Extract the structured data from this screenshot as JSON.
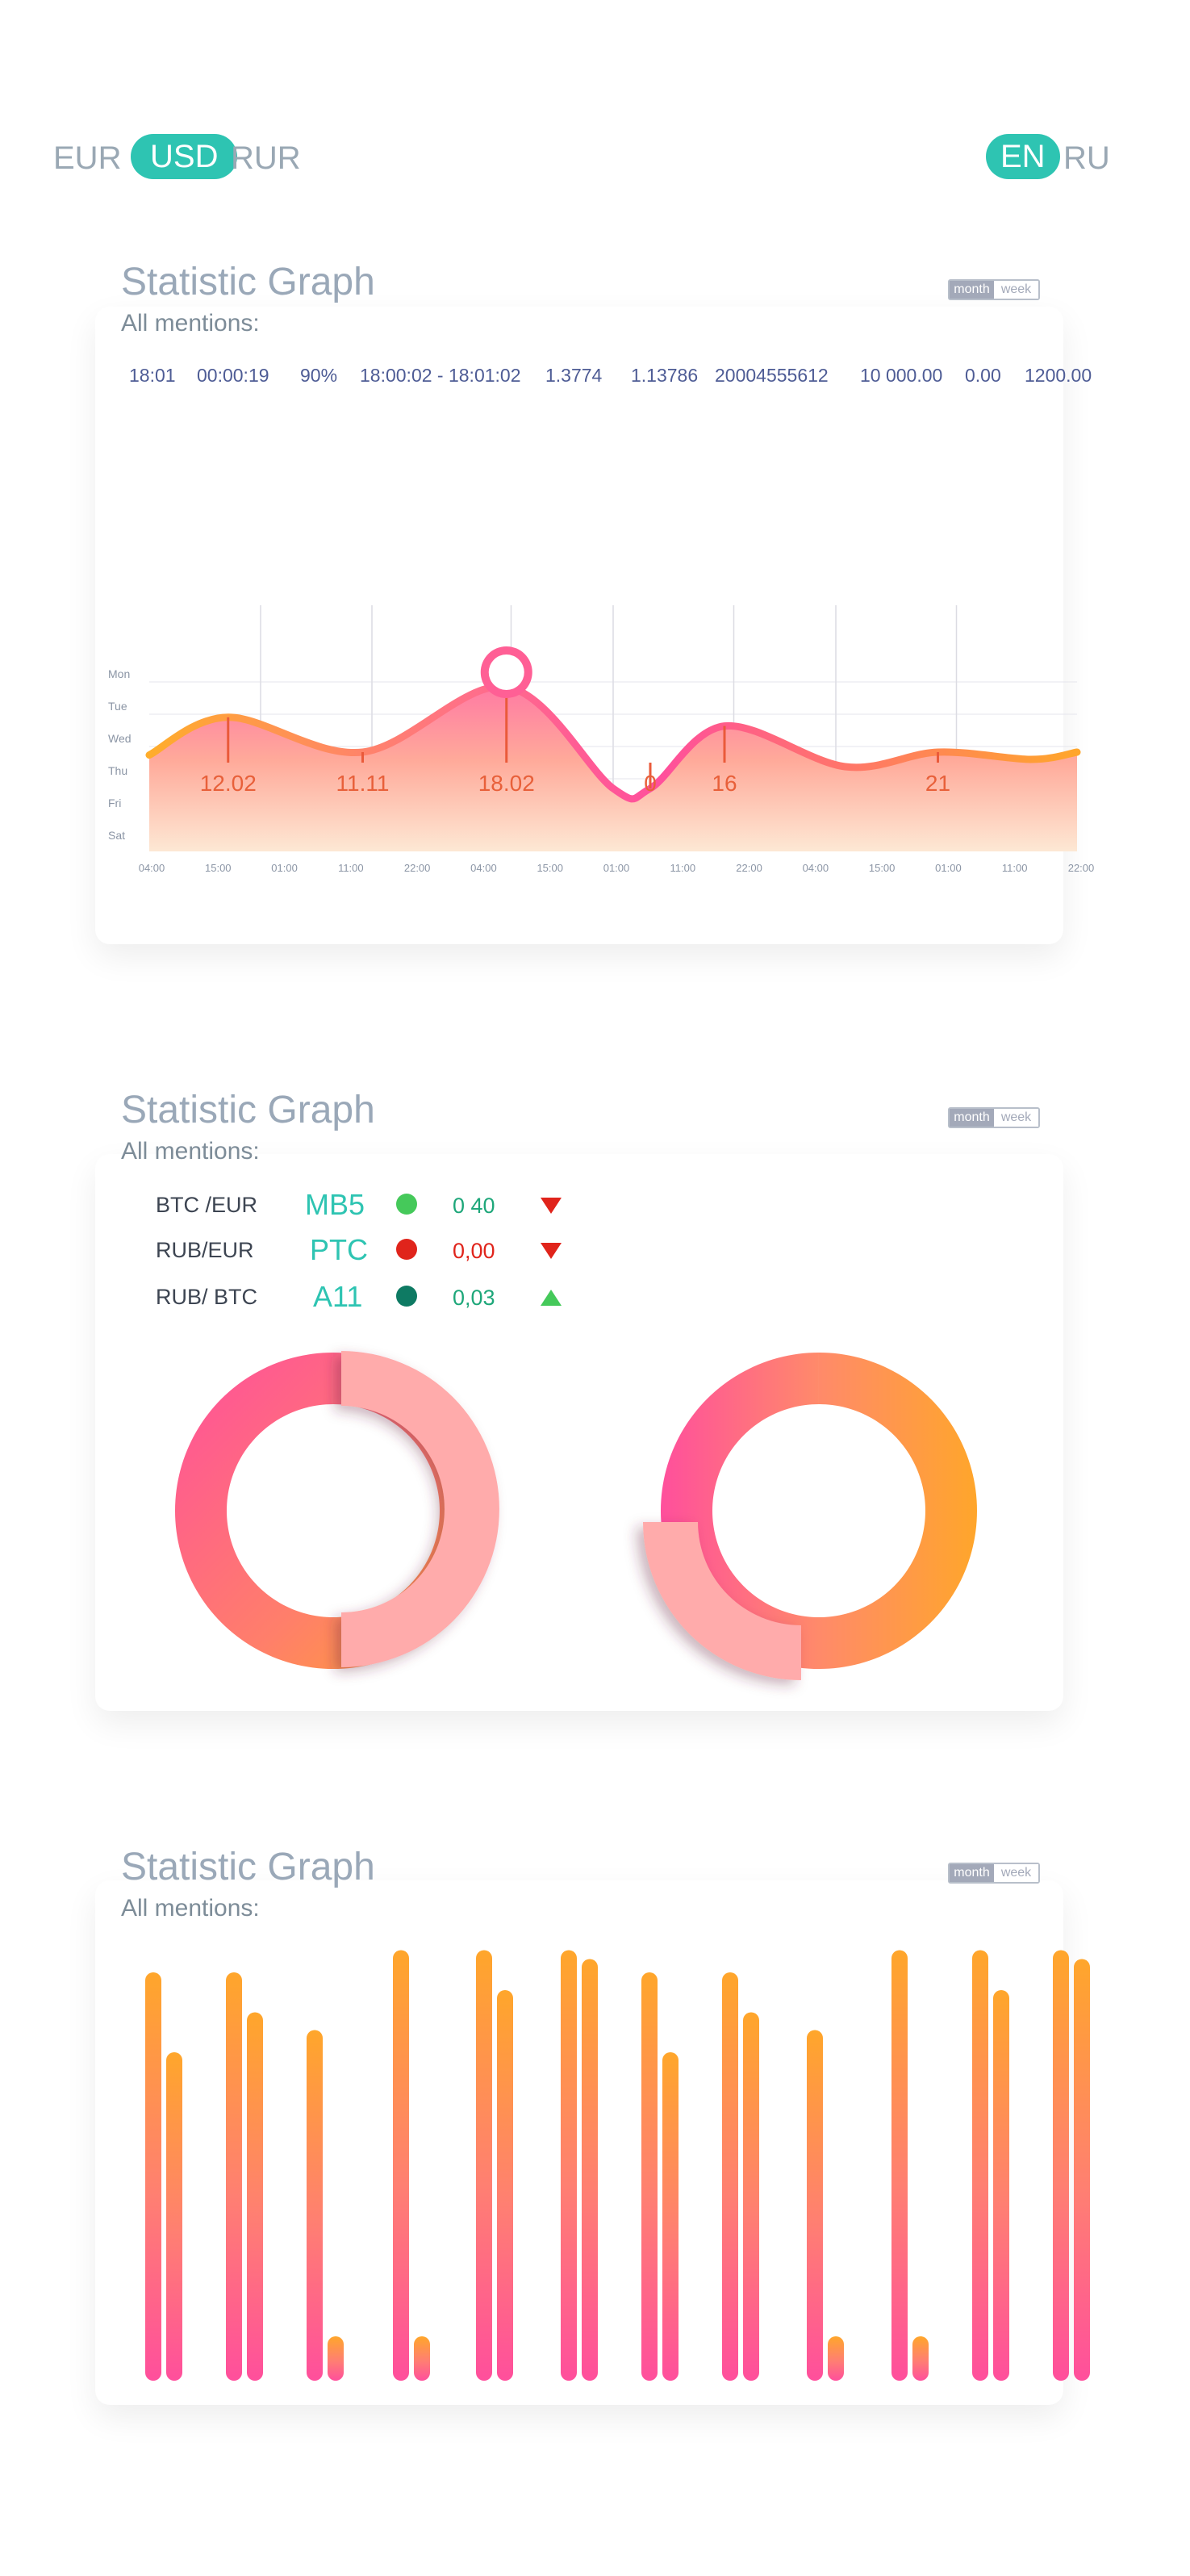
{
  "currencies": {
    "items": [
      "EUR",
      "USD",
      "RUR"
    ],
    "active": "USD"
  },
  "languages": {
    "items": [
      "EN",
      "RU"
    ],
    "active": "EN"
  },
  "toggle": {
    "month": "month",
    "week": "week"
  },
  "colors": {
    "teal": "#2ec4b2",
    "pink": "#ff5ea0",
    "orange": "#ffa62b",
    "red": "#e0241b",
    "green": "#45c95a",
    "darkgreen": "#0e7a63"
  },
  "card1": {
    "title": "Statistic Graph",
    "subtitle": "All mentions:",
    "stats": [
      "18:01",
      "00:00:19",
      "90%",
      "18:00:02  -  18:01:02",
      "1.3774",
      "1.13786",
      "20004555612",
      "10 000.00",
      "0.00",
      "1200.00"
    ]
  },
  "chart_data": [
    {
      "type": "area",
      "y_categories": [
        "Mon",
        "Tue",
        "Wed",
        "Thu",
        "Fri",
        "Sat"
      ],
      "x_ticks": [
        "04:00",
        "15:00",
        "01:00",
        "11:00",
        "22:00",
        "04:00",
        "15:00",
        "01:00",
        "11:00",
        "22:00",
        "04:00",
        "15:00",
        "01:00",
        "11:00",
        "22:00"
      ],
      "annotations": [
        {
          "label": "12.02",
          "x": 0.085,
          "y": 0.84
        },
        {
          "label": "11.11",
          "x": 0.23,
          "y": 0.6
        },
        {
          "label": "18.02",
          "x": 0.385,
          "y": 1.05
        },
        {
          "label": "0",
          "x": 0.54,
          "y": 0.35
        },
        {
          "label": "16",
          "x": 0.62,
          "y": 0.78
        },
        {
          "label": "21",
          "x": 0.85,
          "y": 0.6
        }
      ],
      "highlight_x": 0.385,
      "curve": [
        [
          0,
          0.58
        ],
        [
          0.085,
          0.84
        ],
        [
          0.23,
          0.6
        ],
        [
          0.385,
          1.05
        ],
        [
          0.5,
          0.35
        ],
        [
          0.54,
          0.35
        ],
        [
          0.62,
          0.78
        ],
        [
          0.75,
          0.5
        ],
        [
          0.85,
          0.6
        ],
        [
          0.95,
          0.55
        ],
        [
          1.0,
          0.6
        ]
      ]
    },
    {
      "type": "pie",
      "charts": [
        {
          "segments": [
            {
              "name": "gradient",
              "value": 50
            },
            {
              "name": "light",
              "value": 50
            }
          ]
        },
        {
          "segments": [
            {
              "name": "gradient",
              "value": 75
            },
            {
              "name": "light",
              "value": 25
            }
          ]
        }
      ]
    },
    {
      "type": "bar",
      "ylim": [
        0,
        1
      ],
      "values": [
        0.92,
        0.74,
        0.92,
        0.83,
        0.79,
        0.1,
        0.97,
        0.1,
        0.97,
        0.88,
        0.97,
        0.95,
        0.92,
        0.74,
        0.92,
        0.83,
        0.79,
        0.1,
        0.97,
        0.1,
        0.97,
        0.88,
        0.97,
        0.95
      ]
    }
  ],
  "card2": {
    "title": "Statistic Graph",
    "subtitle": "All mentions:",
    "pairs": [
      {
        "label": "BTC /EUR",
        "code": "MB5",
        "dot": "#45c95a",
        "value": "0 40",
        "value_color": "#1ea77a",
        "trend": "down",
        "trend_color": "#e0241b"
      },
      {
        "label": "RUB/EUR",
        "code": "PTC",
        "dot": "#e0241b",
        "value": "0,00",
        "value_color": "#e0241b",
        "trend": "down",
        "trend_color": "#e0241b"
      },
      {
        "label": "RUB/ BTC",
        "code": "A11",
        "dot": "#0e7a63",
        "value": "0,03",
        "value_color": "#1ea77a",
        "trend": "up",
        "trend_color": "#45c95a"
      }
    ]
  },
  "card3": {
    "title": "Statistic Graph",
    "subtitle": "All mentions:"
  }
}
